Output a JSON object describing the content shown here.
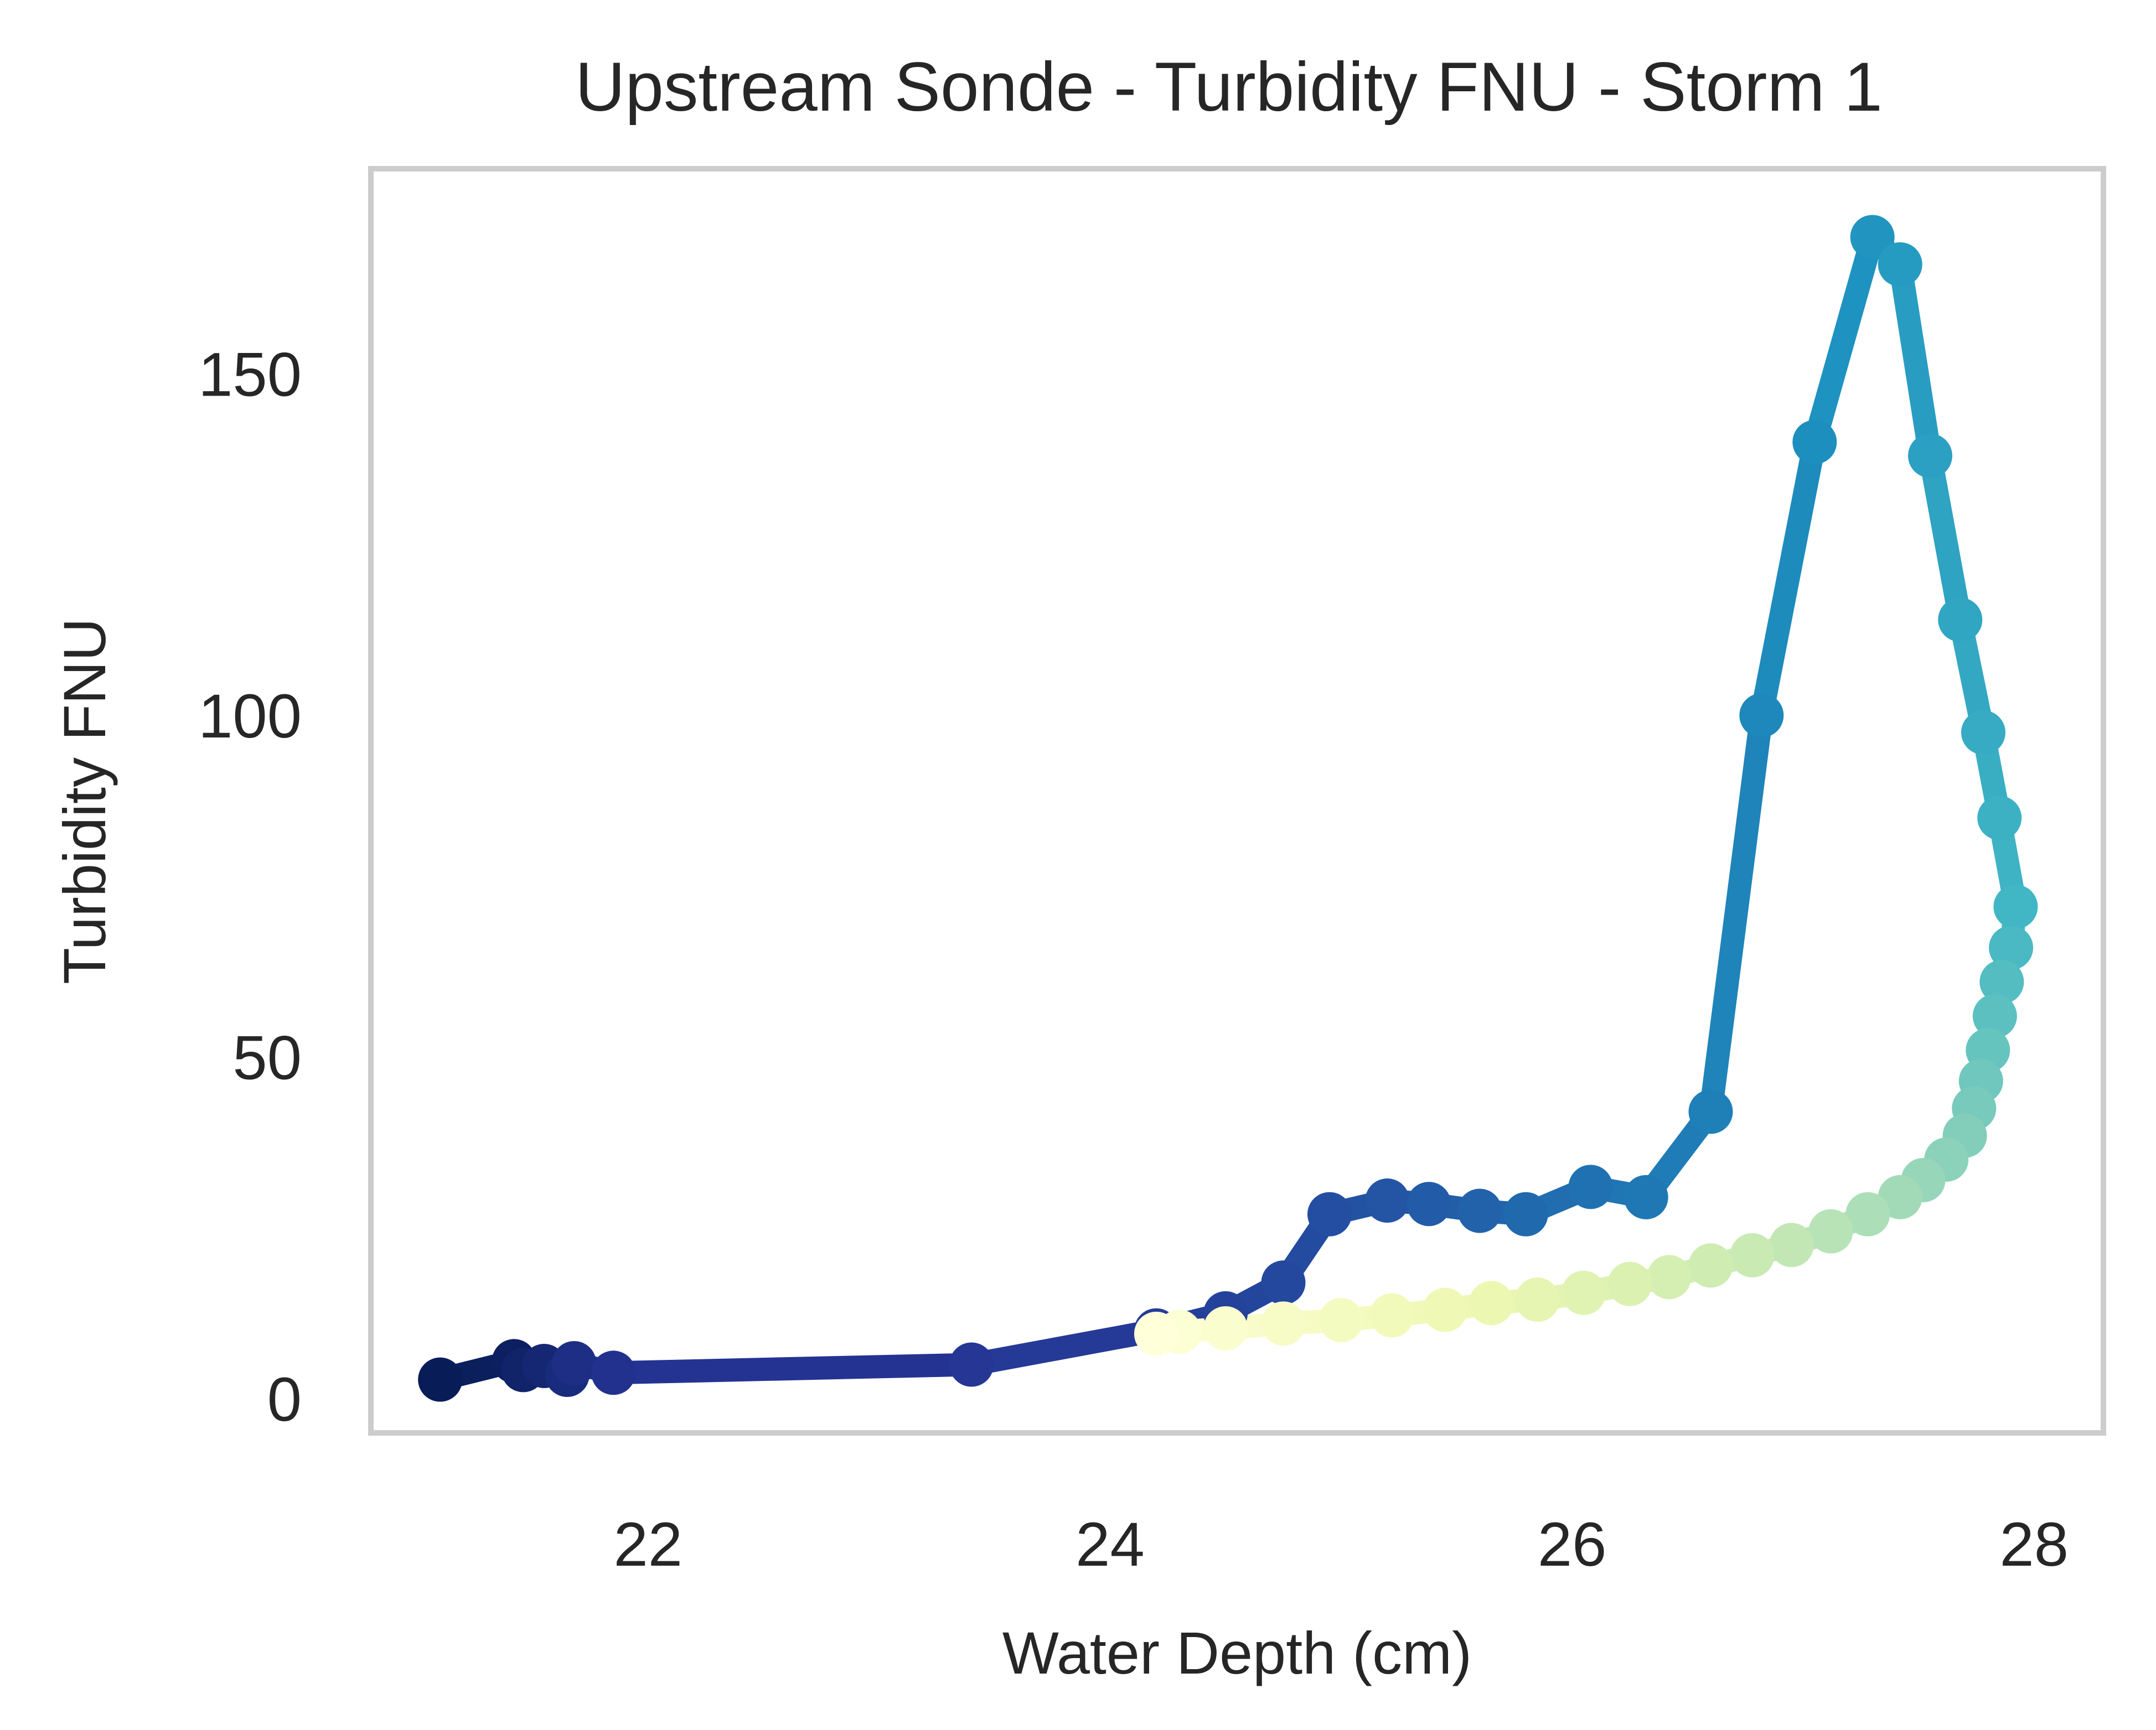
{
  "chart_data": {
    "type": "line",
    "title": "Upstream Sonde - Turbidity FNU - Storm 1",
    "xlabel": "Water Depth (cm)",
    "ylabel": "Turbidity FNU",
    "xlim": [
      20.8,
      28.3
    ],
    "ylim": [
      -5.0,
      180.0
    ],
    "xticks": [
      22,
      24,
      26,
      28
    ],
    "yticks": [
      0,
      50,
      100,
      150
    ],
    "grid": false,
    "legend": "none",
    "colormap": "YlGnBu (dark blue at start of storm, fading to light yellow at end)",
    "colors": {
      "start": "#081d58",
      "mid": "#225ea8",
      "late": "#41b6c4",
      "end": "#ffffd9",
      "frame": "#cccccc",
      "text": "#262626"
    },
    "series": [
      {
        "x": [
          21.1,
          21.42,
          21.46,
          21.55,
          21.65,
          21.68,
          21.85,
          23.4,
          24.2,
          24.5,
          24.75,
          24.95,
          25.2,
          25.38,
          25.6,
          25.8,
          26.08,
          26.32,
          26.6,
          26.82,
          27.05,
          27.3,
          27.42,
          27.55,
          27.68,
          27.78,
          27.85,
          27.92,
          27.9,
          27.86,
          27.83,
          27.8,
          27.77,
          27.74,
          27.7,
          27.62,
          27.52,
          27.42,
          27.28,
          27.12,
          26.95,
          26.78,
          26.6,
          26.42,
          26.25,
          26.05,
          25.85,
          25.65,
          25.45,
          25.22,
          25.0,
          24.75,
          24.5,
          24.3,
          24.2
        ],
        "y": [
          2.8,
          5.5,
          4.2,
          4.8,
          3.5,
          5.2,
          3.8,
          5.0,
          10.0,
          12.5,
          17.0,
          27.0,
          29.0,
          28.5,
          27.5,
          27.0,
          31.0,
          29.5,
          42.0,
          100.0,
          140.0,
          170.0,
          166.0,
          138.0,
          114.0,
          97.5,
          85.0,
          72.0,
          66.0,
          61.0,
          56.0,
          51.0,
          46.5,
          42.5,
          38.5,
          35.0,
          32.0,
          29.5,
          27.0,
          24.5,
          22.5,
          21.0,
          19.5,
          17.8,
          16.8,
          15.5,
          14.5,
          14.0,
          13.0,
          12.2,
          11.5,
          11.0,
          10.3,
          9.8,
          9.5
        ]
      }
    ]
  }
}
